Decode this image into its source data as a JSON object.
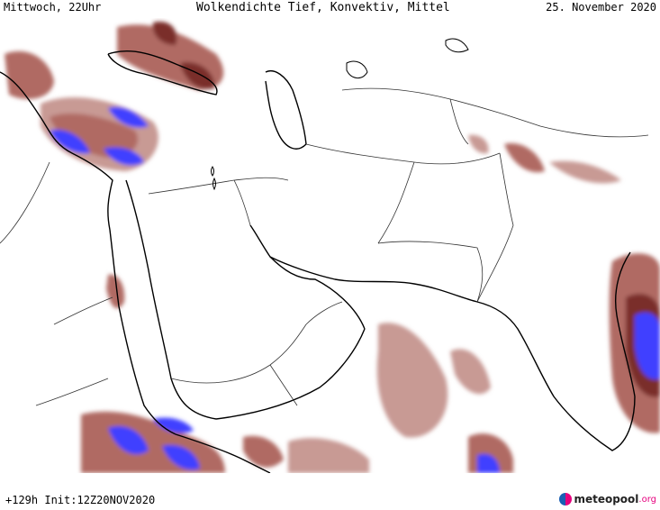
{
  "header": {
    "left": "Mittwoch, 22Uhr",
    "center": "Wolkendichte  Tief, Konvektiv, Mittel",
    "right": "25. November 2020"
  },
  "footer": {
    "left": "+129h Init:12Z20NOV2020"
  },
  "brand": {
    "name": "meteopool",
    "suffix": ".org"
  },
  "legend_colors": {
    "cloud_light": "#c89a94",
    "cloud_mid": "#b06a64",
    "cloud_dark": "#7a2e2b",
    "cloud_max": "#4040ff",
    "coast": "#000000",
    "border": "#333333"
  }
}
